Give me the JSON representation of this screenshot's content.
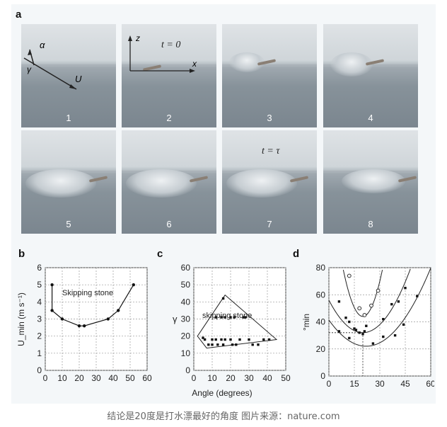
{
  "figure": {
    "panel_letters": {
      "a": "a",
      "b": "b",
      "c": "c",
      "d": "d"
    },
    "photos": [
      {
        "number": "1",
        "overlay": ""
      },
      {
        "number": "2",
        "overlay": "t = 0"
      },
      {
        "number": "3",
        "overlay": ""
      },
      {
        "number": "4",
        "overlay": ""
      },
      {
        "number": "5",
        "overlay": ""
      },
      {
        "number": "6",
        "overlay": ""
      },
      {
        "number": "7",
        "overlay": "t = τ"
      },
      {
        "number": "8",
        "overlay": ""
      }
    ],
    "photo1_labels": {
      "alpha": "α",
      "gamma": "γ",
      "u": "U"
    },
    "photo2_labels": {
      "z": "z",
      "x": "x"
    }
  },
  "chart_data": [
    {
      "type": "line",
      "panel": "b",
      "ylabel": "U_min (m s^-1)",
      "xlabel": "",
      "annotation": "Skipping stone",
      "xlim": [
        0,
        60
      ],
      "ylim": [
        0,
        6
      ],
      "xticks": [
        0,
        10,
        20,
        30,
        40,
        50,
        60
      ],
      "yticks": [
        0,
        1,
        2,
        3,
        4,
        5,
        6
      ],
      "x": [
        4,
        4,
        10,
        20,
        23,
        37,
        43,
        52
      ],
      "y": [
        5.0,
        3.5,
        3.0,
        2.6,
        2.6,
        3.0,
        3.5,
        5.0
      ],
      "grid": true
    },
    {
      "type": "scatter",
      "panel": "c",
      "ylabel": "γ",
      "xlabel": "Angle (degrees)",
      "annotation": "skipping stone",
      "xlim": [
        0,
        50
      ],
      "ylim": [
        0,
        60
      ],
      "xticks": [
        0,
        10,
        20,
        30,
        40,
        50
      ],
      "yticks": [
        0,
        10,
        20,
        30,
        40,
        50,
        60
      ],
      "points": [
        [
          5,
          19
        ],
        [
          6,
          18
        ],
        [
          8,
          15
        ],
        [
          10,
          18
        ],
        [
          10,
          15
        ],
        [
          12,
          18
        ],
        [
          13,
          15
        ],
        [
          15,
          18
        ],
        [
          16,
          15
        ],
        [
          17,
          18
        ],
        [
          17,
          31
        ],
        [
          12,
          31
        ],
        [
          15,
          31
        ],
        [
          20,
          31
        ],
        [
          22,
          31
        ],
        [
          27,
          31
        ],
        [
          28,
          31
        ],
        [
          20,
          18
        ],
        [
          21,
          15
        ],
        [
          23,
          15
        ],
        [
          25,
          18
        ],
        [
          30,
          18
        ],
        [
          32,
          15
        ],
        [
          35,
          15
        ],
        [
          38,
          18
        ],
        [
          41,
          18
        ],
        [
          16,
          42
        ]
      ],
      "boundary": [
        [
          2,
          20
        ],
        [
          17,
          44
        ],
        [
          45,
          18
        ],
        [
          7,
          13
        ],
        [
          2,
          20
        ]
      ],
      "grid": true
    },
    {
      "type": "scatter",
      "panel": "d",
      "ylabel": "°min",
      "xlabel": "",
      "xlim": [
        0,
        60
      ],
      "ylim": [
        0,
        80
      ],
      "xticks": [
        0,
        15,
        30,
        45,
        60
      ],
      "yticks": [
        0,
        20,
        40,
        60,
        80
      ],
      "series": [
        {
          "marker": "open",
          "points": [
            [
              12,
              74
            ],
            [
              18,
              50
            ],
            [
              21,
              45
            ],
            [
              25,
              52
            ],
            [
              29,
              63
            ]
          ]
        },
        {
          "marker": "filled",
          "points": [
            [
              6,
              55
            ],
            [
              10,
              43
            ],
            [
              12,
              40
            ],
            [
              15,
              35
            ],
            [
              18,
              32
            ],
            [
              22,
              37
            ],
            [
              32,
              42
            ],
            [
              37,
              53
            ],
            [
              41,
              55
            ],
            [
              45,
              65
            ]
          ]
        },
        {
          "marker": "filled",
          "points": [
            [
              6,
              33
            ],
            [
              12,
              28
            ],
            [
              16,
              34
            ],
            [
              20,
              31
            ],
            [
              21,
              33
            ],
            [
              26,
              24
            ],
            [
              32,
              29
            ],
            [
              39,
              30
            ],
            [
              44,
              38
            ],
            [
              52,
              59
            ]
          ]
        }
      ],
      "guide": {
        "x": 20,
        "y": 32
      },
      "grid": true
    }
  ],
  "caption": "结论是20度是打水漂最好的角度 图片来源：nature.com"
}
